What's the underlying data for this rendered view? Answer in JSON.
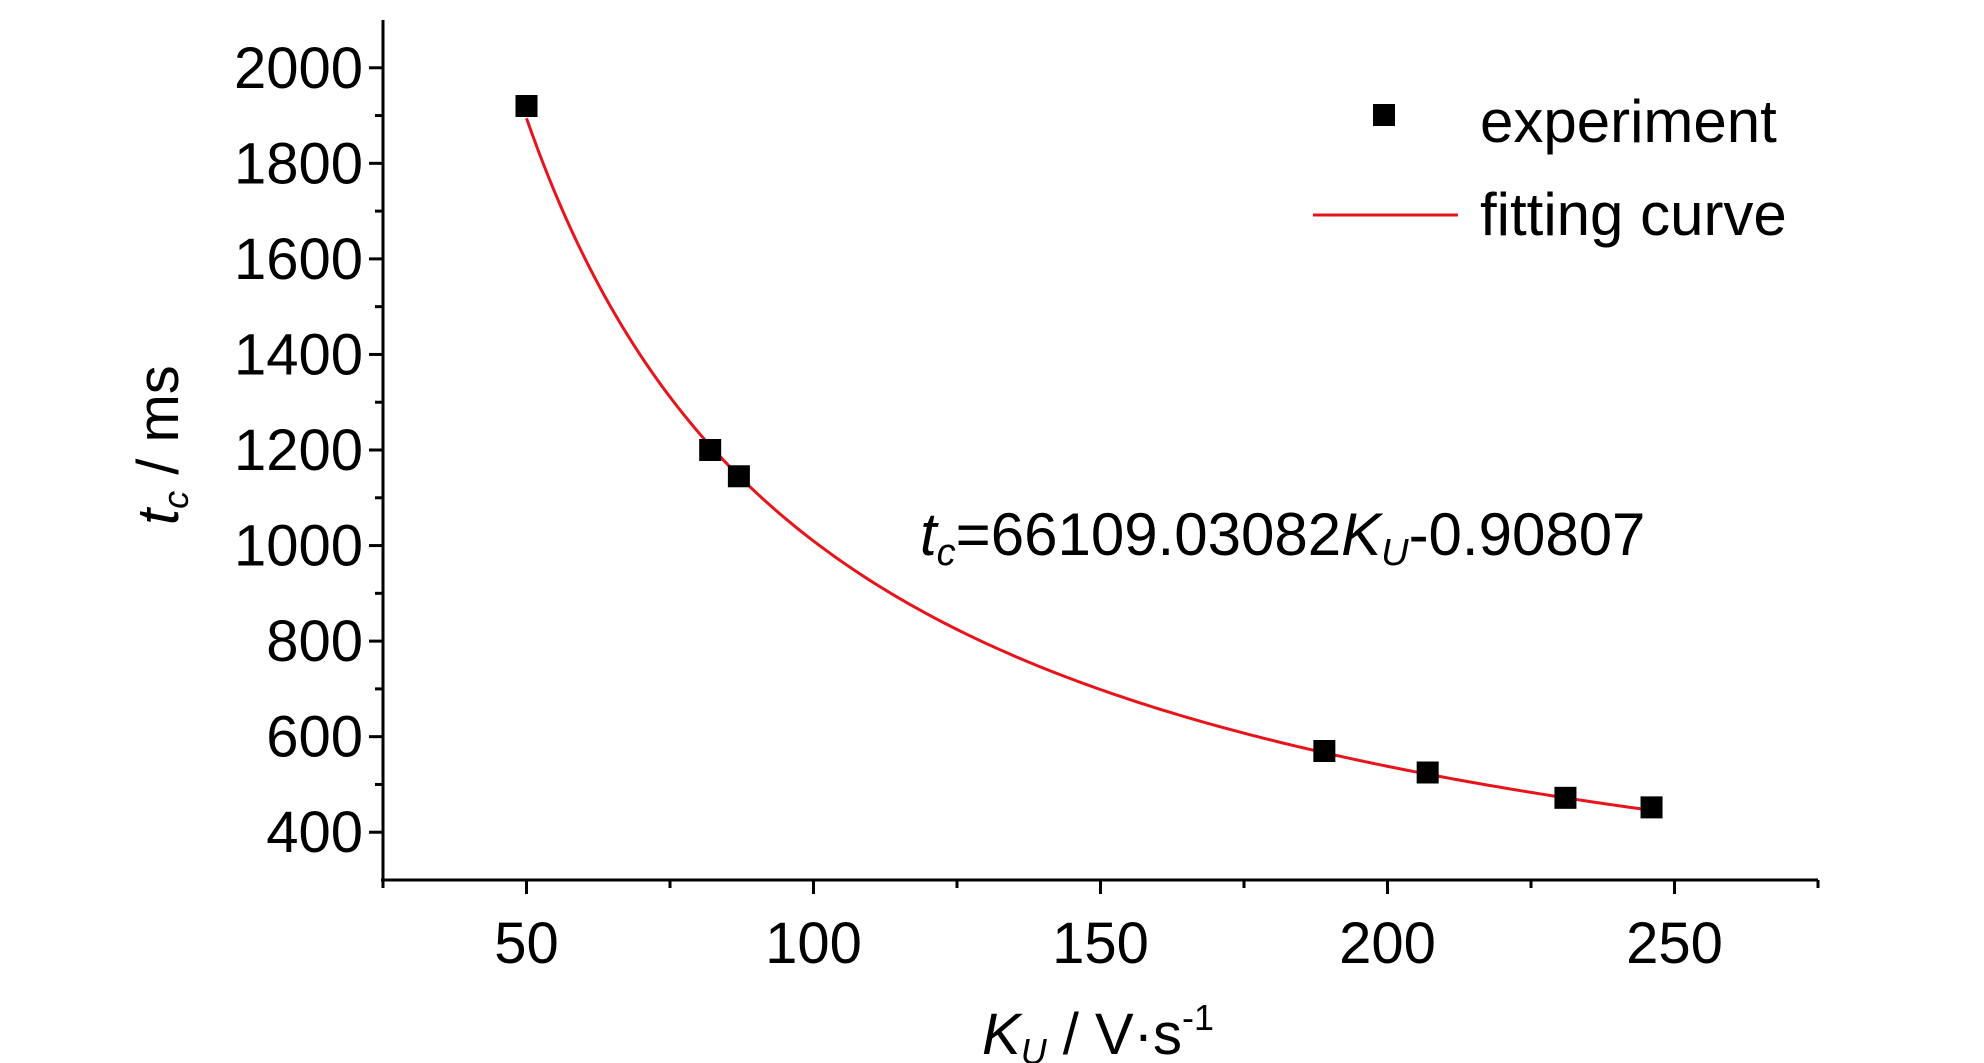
{
  "chart_data": {
    "type": "scatter",
    "xlabel": {
      "main": "K",
      "sub": "U",
      "rest": " / V·s",
      "sup": "-1"
    },
    "ylabel": {
      "main": "t",
      "sub": "c",
      "rest": " / ms"
    },
    "xlim": [
      25,
      275
    ],
    "ylim": [
      300,
      2100
    ],
    "x_ticks": [
      50,
      100,
      150,
      200,
      250
    ],
    "y_ticks": [
      400,
      600,
      800,
      1000,
      1200,
      1400,
      1600,
      1800,
      2000
    ],
    "x_minor_step": 25,
    "y_minor_step": 100,
    "grid": false,
    "legend_position": "top-right",
    "series": [
      {
        "name": "experiment",
        "kind": "scatter",
        "marker": "square",
        "color": "#000000",
        "x": [
          50,
          82,
          87,
          189,
          207,
          231,
          246
        ],
        "y": [
          1920,
          1200,
          1145,
          570,
          525,
          472,
          452
        ]
      },
      {
        "name": "fitting curve",
        "kind": "line",
        "color": "#e8141c",
        "equation": {
          "coefficient": 66109.03082,
          "exponent": -0.90807
        },
        "x_range": [
          50,
          246
        ]
      }
    ],
    "annotation": {
      "t": "t",
      "c": "c",
      "eq": "=66109.03082",
      "K": "K",
      "U": "U",
      "exp": "-0.90807"
    }
  }
}
